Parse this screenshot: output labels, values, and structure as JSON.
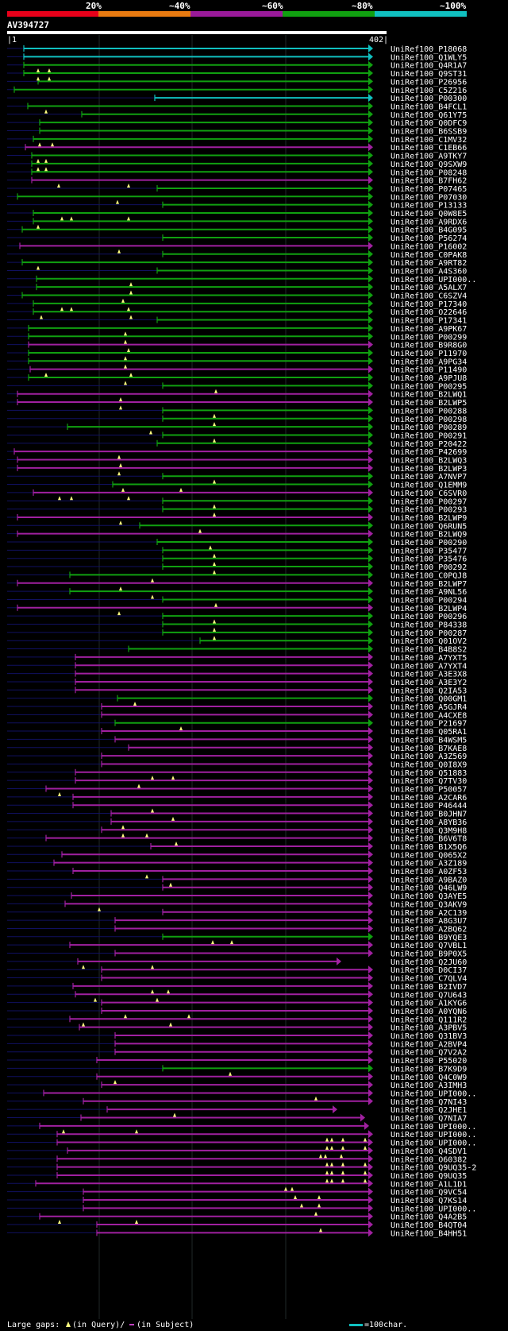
{
  "header": {
    "pct_labels": [
      "20%",
      "~40%",
      "~60%",
      "~80%",
      "~100%"
    ],
    "band_colors": [
      "#e8001a",
      "#e87a10",
      "#9a1a9a",
      "#10a010",
      "#10c0c0"
    ]
  },
  "query": {
    "name": "AV394727",
    "length": 402,
    "ruler_start": "|1",
    "ruler_end": "402|"
  },
  "colors": {
    "cyan": "#10c0c0",
    "green": "#10a010",
    "magenta": "#a020a0",
    "navy": "#101060",
    "gap": "#ffff80"
  },
  "hits": [
    [
      "UniRef100_P18068",
      "c",
      30,
      470,
      [],
      []
    ],
    [
      "UniRef100_Q1WLY5",
      "c",
      30,
      470,
      [],
      []
    ],
    [
      "UniRef100_Q4R1A7",
      "g",
      30,
      470,
      [],
      []
    ],
    [
      "UniRef100_Q9ST31",
      "g",
      30,
      470,
      [
        48,
        62
      ],
      []
    ],
    [
      "UniRef100_P26956",
      "g",
      48,
      470,
      [
        48,
        62
      ],
      []
    ],
    [
      "UniRef100_C5Z216",
      "g",
      18,
      470,
      [],
      []
    ],
    [
      "UniRef100_P00300",
      "c",
      195,
      470,
      [],
      []
    ],
    [
      "UniRef100_B4FCL1",
      "g",
      35,
      470,
      [],
      []
    ],
    [
      "UniRef100_Q61Y75",
      "g",
      103,
      470,
      [
        58
      ],
      []
    ],
    [
      "UniRef100_Q0DFC9",
      "g",
      50,
      470,
      [],
      []
    ],
    [
      "UniRef100_B6SSB9",
      "g",
      50,
      470,
      [],
      []
    ],
    [
      "UniRef100_C1MV32",
      "g",
      42,
      470,
      [],
      []
    ],
    [
      "UniRef100_C1EB66",
      "m",
      32,
      470,
      [
        50,
        66
      ],
      []
    ],
    [
      "UniRef100_A9TKY7",
      "g",
      40,
      470,
      [],
      []
    ],
    [
      "UniRef100_Q9SXW9",
      "g",
      40,
      470,
      [
        48,
        58
      ],
      []
    ],
    [
      "UniRef100_P08248",
      "g",
      40,
      470,
      [
        48,
        58
      ],
      []
    ],
    [
      "UniRef100_B7FH62",
      "m",
      40,
      470,
      [],
      []
    ],
    [
      "UniRef100_P07465",
      "g",
      198,
      470,
      [
        74,
        162
      ],
      []
    ],
    [
      "UniRef100_P07030",
      "g",
      22,
      470,
      [],
      []
    ],
    [
      "UniRef100_P13133",
      "g",
      205,
      470,
      [
        148
      ],
      []
    ],
    [
      "UniRef100_Q0W8E5",
      "g",
      42,
      470,
      [],
      []
    ],
    [
      "UniRef100_A9RDX6",
      "g",
      42,
      470,
      [
        78,
        90,
        162
      ],
      []
    ],
    [
      "UniRef100_B4G095",
      "g",
      28,
      470,
      [
        48
      ],
      []
    ],
    [
      "UniRef100_P56274",
      "g",
      205,
      470,
      [],
      []
    ],
    [
      "UniRef100_P16002",
      "m",
      25,
      470,
      [],
      []
    ],
    [
      "UniRef100_C0PAK8",
      "g",
      205,
      470,
      [
        150
      ],
      []
    ],
    [
      "UniRef100_A9RT82",
      "g",
      28,
      470,
      [],
      []
    ],
    [
      "UniRef100_A4S360",
      "g",
      198,
      470,
      [
        48
      ],
      []
    ],
    [
      "UniRef100_UPI000..",
      "g",
      46,
      470,
      [],
      []
    ],
    [
      "UniRef100_A5ALX7",
      "g",
      46,
      470,
      [
        165
      ],
      []
    ],
    [
      "UniRef100_C6SZV4",
      "g",
      28,
      470,
      [
        165
      ],
      []
    ],
    [
      "UniRef100_P17340",
      "g",
      42,
      470,
      [
        155
      ],
      []
    ],
    [
      "UniRef100_O22646",
      "g",
      42,
      470,
      [
        78,
        90,
        162
      ],
      []
    ],
    [
      "UniRef100_P17341",
      "g",
      198,
      470,
      [
        52,
        165
      ],
      []
    ],
    [
      "UniRef100_A9PK67",
      "g",
      36,
      470,
      [],
      []
    ],
    [
      "UniRef100_P00299",
      "g",
      36,
      470,
      [
        158
      ],
      []
    ],
    [
      "UniRef100_B9R8G0",
      "m",
      36,
      470,
      [
        158
      ],
      []
    ],
    [
      "UniRef100_P11970",
      "g",
      36,
      470,
      [
        162
      ],
      []
    ],
    [
      "UniRef100_A9PG34",
      "g",
      36,
      470,
      [
        158
      ],
      []
    ],
    [
      "UniRef100_P11490",
      "m",
      38,
      470,
      [
        158
      ],
      []
    ],
    [
      "UniRef100_A9PJU8",
      "g",
      36,
      470,
      [
        58,
        165
      ],
      []
    ],
    [
      "UniRef100_P00295",
      "g",
      205,
      470,
      [
        158
      ],
      []
    ],
    [
      "UniRef100_B2LWQ1",
      "m",
      22,
      470,
      [
        272
      ],
      []
    ],
    [
      "UniRef100_B2LWP5",
      "m",
      22,
      470,
      [
        152
      ],
      []
    ],
    [
      "UniRef100_P00288",
      "g",
      205,
      470,
      [
        152
      ],
      []
    ],
    [
      "UniRef100_P00298",
      "g",
      205,
      470,
      [
        270
      ],
      []
    ],
    [
      "UniRef100_P00289",
      "g",
      85,
      470,
      [
        270
      ],
      []
    ],
    [
      "UniRef100_P00291",
      "g",
      205,
      470,
      [
        190
      ],
      []
    ],
    [
      "UniRef100_P20422",
      "g",
      198,
      470,
      [
        270
      ],
      []
    ],
    [
      "UniRef100_P42699",
      "m",
      18,
      470,
      [],
      []
    ],
    [
      "UniRef100_B2LWQ3",
      "m",
      22,
      470,
      [
        150
      ],
      []
    ],
    [
      "UniRef100_B2LWP3",
      "m",
      22,
      470,
      [
        152
      ],
      []
    ],
    [
      "UniRef100_A7NVP7",
      "g",
      205,
      470,
      [
        150
      ],
      []
    ],
    [
      "UniRef100_Q1EMM9",
      "g",
      142,
      470,
      [
        270
      ],
      []
    ],
    [
      "UniRef100_C6SVR0",
      "m",
      42,
      470,
      [
        155,
        228
      ],
      []
    ],
    [
      "UniRef100_P00297",
      "g",
      205,
      470,
      [
        75,
        90,
        162
      ],
      []
    ],
    [
      "UniRef100_P00293",
      "g",
      205,
      470,
      [
        270
      ],
      []
    ],
    [
      "UniRef100_B2LWP9",
      "m",
      22,
      470,
      [
        270
      ],
      []
    ],
    [
      "UniRef100_Q6RUN5",
      "g",
      176,
      470,
      [
        152
      ],
      []
    ],
    [
      "UniRef100_B2LWQ9",
      "m",
      22,
      470,
      [
        252
      ],
      []
    ],
    [
      "UniRef100_P00290",
      "g",
      198,
      470,
      [],
      []
    ],
    [
      "UniRef100_P35477",
      "g",
      205,
      470,
      [
        265
      ],
      []
    ],
    [
      "UniRef100_P35476",
      "g",
      205,
      470,
      [
        270
      ],
      []
    ],
    [
      "UniRef100_P00292",
      "g",
      205,
      470,
      [
        270
      ],
      []
    ],
    [
      "UniRef100_C0PQJ8",
      "g",
      88,
      470,
      [
        270
      ],
      []
    ],
    [
      "UniRef100_B2LWP7",
      "m",
      22,
      470,
      [
        192
      ],
      []
    ],
    [
      "UniRef100_A9NL56",
      "g",
      88,
      470,
      [
        152
      ],
      []
    ],
    [
      "UniRef100_P00294",
      "g",
      205,
      470,
      [
        192
      ],
      []
    ],
    [
      "UniRef100_B2LWP4",
      "m",
      22,
      470,
      [
        272
      ],
      []
    ],
    [
      "UniRef100_P00296",
      "g",
      205,
      470,
      [
        150
      ],
      []
    ],
    [
      "UniRef100_P84338",
      "g",
      205,
      470,
      [
        270
      ],
      []
    ],
    [
      "UniRef100_P00287",
      "g",
      205,
      470,
      [
        270
      ],
      []
    ],
    [
      "UniRef100_Q01OV2",
      "g",
      252,
      470,
      [
        270
      ],
      []
    ],
    [
      "UniRef100_B4B8S2",
      "g",
      162,
      470,
      [],
      []
    ],
    [
      "UniRef100_A7YXT5",
      "m",
      95,
      470,
      [],
      []
    ],
    [
      "UniRef100_A7YXT4",
      "m",
      95,
      470,
      [],
      []
    ],
    [
      "UniRef100_A3E3X8",
      "m",
      95,
      470,
      [],
      []
    ],
    [
      "UniRef100_A3E3Y2",
      "m",
      95,
      470,
      [],
      []
    ],
    [
      "UniRef100_Q2IA53",
      "m",
      95,
      470,
      [],
      []
    ],
    [
      "UniRef100_Q00GM1",
      "g",
      148,
      470,
      [],
      []
    ],
    [
      "UniRef100_A5GJR4",
      "m",
      128,
      470,
      [
        170
      ],
      []
    ],
    [
      "UniRef100_A4CXE8",
      "m",
      128,
      470,
      [],
      []
    ],
    [
      "UniRef100_P21697",
      "g",
      145,
      470,
      [],
      []
    ],
    [
      "UniRef100_Q05RA1",
      "m",
      128,
      470,
      [
        228
      ],
      []
    ],
    [
      "UniRef100_B4WSM5",
      "m",
      145,
      470,
      [],
      []
    ],
    [
      "UniRef100_B7KAE8",
      "m",
      162,
      470,
      [],
      []
    ],
    [
      "UniRef100_A3Z569",
      "m",
      128,
      470,
      [],
      []
    ],
    [
      "UniRef100_Q0I8X9",
      "m",
      128,
      470,
      [],
      []
    ],
    [
      "UniRef100_Q51883",
      "m",
      95,
      470,
      [],
      []
    ],
    [
      "UniRef100_Q7TV30",
      "m",
      95,
      470,
      [
        192,
        218
      ],
      []
    ],
    [
      "UniRef100_P50057",
      "m",
      58,
      470,
      [
        175
      ],
      []
    ],
    [
      "UniRef100_A2CAR6",
      "m",
      92,
      470,
      [
        75
      ],
      []
    ],
    [
      "UniRef100_P46444",
      "m",
      92,
      470,
      [],
      []
    ],
    [
      "UniRef100_B0JHN7",
      "m",
      140,
      470,
      [
        192
      ],
      []
    ],
    [
      "UniRef100_A8YB36",
      "m",
      140,
      470,
      [
        218
      ],
      []
    ],
    [
      "UniRef100_Q3M9H8",
      "m",
      128,
      470,
      [
        155
      ],
      []
    ],
    [
      "UniRef100_B6V6T8",
      "m",
      58,
      470,
      [
        155,
        185
      ],
      []
    ],
    [
      "UniRef100_B1X5Q6",
      "m",
      190,
      470,
      [
        222
      ],
      []
    ],
    [
      "UniRef100_Q065X2",
      "m",
      78,
      470,
      [],
      []
    ],
    [
      "UniRef100_A3Z189",
      "m",
      68,
      470,
      [],
      []
    ],
    [
      "UniRef100_A0ZF53",
      "m",
      92,
      470,
      [],
      []
    ],
    [
      "UniRef100_A9BAZ0",
      "m",
      205,
      470,
      [
        185
      ],
      []
    ],
    [
      "UniRef100_Q46LW9",
      "m",
      205,
      470,
      [
        215
      ],
      []
    ],
    [
      "UniRef100_Q3AYE5",
      "m",
      90,
      470,
      [],
      []
    ],
    [
      "UniRef100_Q3AKV9",
      "m",
      82,
      470,
      [],
      []
    ],
    [
      "UniRef100_A2C139",
      "m",
      205,
      470,
      [
        125
      ],
      []
    ],
    [
      "UniRef100_A8G3U7",
      "m",
      145,
      470,
      [],
      []
    ],
    [
      "UniRef100_A2BQ62",
      "m",
      145,
      470,
      [],
      []
    ],
    [
      "UniRef100_B9YQE3",
      "g",
      205,
      470,
      [],
      []
    ],
    [
      "UniRef100_Q7VBL1",
      "m",
      88,
      470,
      [
        268,
        292
      ],
      []
    ],
    [
      "UniRef100_B9P0X5",
      "m",
      145,
      470,
      [],
      []
    ],
    [
      "UniRef100_Q2JU60",
      "m",
      98,
      430,
      [],
      []
    ],
    [
      "UniRef100_D0CI37",
      "m",
      128,
      470,
      [
        105,
        192
      ],
      []
    ],
    [
      "UniRef100_C7QLV4",
      "m",
      128,
      470,
      [],
      []
    ],
    [
      "UniRef100_B2IVD7",
      "m",
      92,
      470,
      [],
      []
    ],
    [
      "UniRef100_Q7U643",
      "m",
      95,
      470,
      [
        192,
        212
      ],
      []
    ],
    [
      "UniRef100_A1KYG6",
      "m",
      128,
      470,
      [
        120,
        198
      ],
      []
    ],
    [
      "UniRef100_A0YQN6",
      "m",
      128,
      470,
      [],
      []
    ],
    [
      "UniRef100_Q111R2",
      "m",
      88,
      470,
      [
        158,
        238
      ],
      []
    ],
    [
      "UniRef100_A3PBV5",
      "m",
      100,
      470,
      [
        105,
        215
      ],
      []
    ],
    [
      "UniRef100_Q31BV3",
      "m",
      145,
      470,
      [],
      []
    ],
    [
      "UniRef100_A2BVP4",
      "m",
      145,
      470,
      [],
      []
    ],
    [
      "UniRef100_Q7V2A2",
      "m",
      145,
      470,
      [],
      []
    ],
    [
      "UniRef100_P55020",
      "m",
      122,
      470,
      [],
      []
    ],
    [
      "UniRef100_B7K9D9",
      "g",
      205,
      470,
      [],
      []
    ],
    [
      "UniRef100_Q4C0W9",
      "m",
      122,
      470,
      [
        290
      ],
      []
    ],
    [
      "UniRef100_A3IMH3",
      "m",
      128,
      470,
      [
        145
      ],
      []
    ],
    [
      "UniRef100_UPI000..",
      "m",
      55,
      470,
      [],
      []
    ],
    [
      "UniRef100_Q7NI43",
      "m",
      105,
      470,
      [
        398
      ],
      []
    ],
    [
      "UniRef100_Q2JHE1",
      "m",
      135,
      425,
      [],
      []
    ],
    [
      "UniRef100_Q7NIA7",
      "m",
      102,
      460,
      [
        220
      ],
      []
    ],
    [
      "UniRef100_UPI000..",
      "m",
      50,
      465,
      [],
      []
    ],
    [
      "UniRef100_UPI000..",
      "m",
      72,
      470,
      [
        80,
        172
      ],
      []
    ],
    [
      "UniRef100_UPI000..",
      "m",
      72,
      470,
      [
        412,
        418,
        432,
        460
      ],
      []
    ],
    [
      "UniRef100_Q4SDV1",
      "m",
      85,
      470,
      [
        412,
        418,
        432,
        460
      ],
      []
    ],
    [
      "UniRef100_O60382",
      "m",
      72,
      470,
      [
        404,
        410,
        430
      ],
      []
    ],
    [
      "UniRef100_Q9UQ35-2",
      "m",
      72,
      470,
      [
        412,
        418,
        432,
        460
      ],
      []
    ],
    [
      "UniRef100_Q9UQ35",
      "m",
      72,
      470,
      [
        412,
        418,
        432,
        460
      ],
      []
    ],
    [
      "UniRef100_A1L1D1",
      "m",
      45,
      470,
      [
        412,
        418,
        432,
        460
      ],
      []
    ],
    [
      "UniRef100_Q9VC54",
      "m",
      105,
      470,
      [
        360,
        368
      ],
      []
    ],
    [
      "UniRef100_Q7KS14",
      "m",
      105,
      470,
      [
        372,
        402
      ],
      []
    ],
    [
      "UniRef100_UPI000..",
      "m",
      105,
      470,
      [
        380,
        402
      ],
      []
    ],
    [
      "UniRef100_Q4A2B5",
      "m",
      50,
      470,
      [
        398
      ],
      []
    ],
    [
      "UniRef100_B4QT04",
      "m",
      122,
      470,
      [
        75,
        172
      ],
      []
    ],
    [
      "UniRef100_B4HH51",
      "m",
      122,
      470,
      [
        404
      ],
      []
    ]
  ],
  "footer": {
    "gaps_prefix": "Large gaps: ",
    "gaps_query": "(in Query)/",
    "gaps_subject": "(in Subject)",
    "scale_label": "=100char."
  }
}
